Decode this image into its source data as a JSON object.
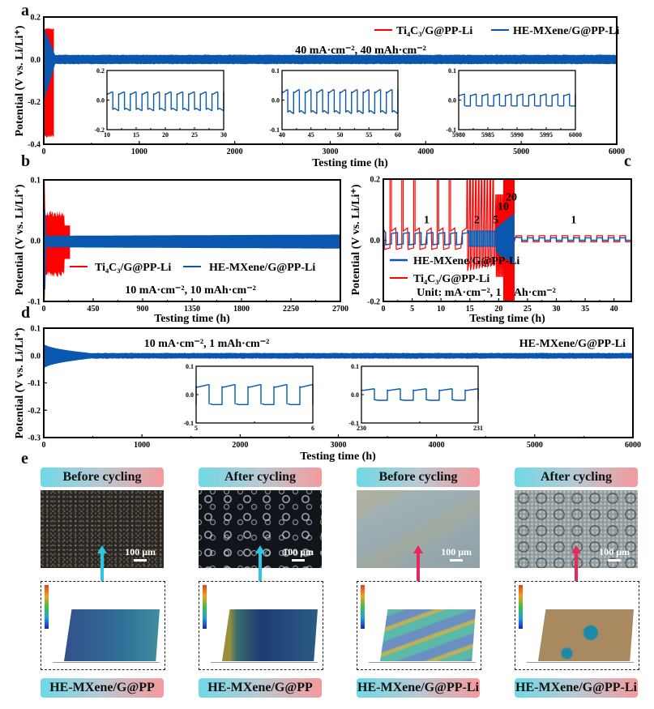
{
  "figure": {
    "panel_letters": [
      "a",
      "b",
      "c",
      "d",
      "e"
    ]
  },
  "chart_data": [
    {
      "id": "a",
      "type": "line",
      "xlabel": "Testing time (h)",
      "ylabel": "Potential (V vs. Li/Li⁺)",
      "xlim": [
        0,
        6000
      ],
      "ylim": [
        -0.4,
        0.2
      ],
      "xticks": [
        "0",
        "1000",
        "2000",
        "3000",
        "4000",
        "5000",
        "6000"
      ],
      "yticks": [
        "-0.4",
        "-0.2",
        "0.0",
        "0.2"
      ],
      "annotation": "40 mA·cm⁻², 40 mAh·cm⁻²",
      "legend": [
        "Ti₄C₃/G@PP-Li",
        "HE-MXene/G@PP-Li"
      ],
      "legend_position": "top-right",
      "series": [
        {
          "name": "Ti₄C₃/G@PP-Li",
          "color": "#ff0000",
          "x_end": 110,
          "upper": 0.17,
          "lower": -0.37
        },
        {
          "name": "HE-MXene/G@PP-Li",
          "color": "#0a57b0",
          "x_end": 6000,
          "upper_start": 0.15,
          "lower_start": -0.2,
          "upper": 0.02,
          "lower": -0.02
        }
      ],
      "insets": [
        {
          "xlim": [
            10,
            30
          ],
          "ylim": [
            -0.2,
            0.2
          ],
          "xticks": [
            "10",
            "15",
            "20",
            "25",
            "30"
          ],
          "yticks": [
            "-0.2",
            "0.0",
            "0.2"
          ],
          "amplitude": 0.07,
          "cycles": 10
        },
        {
          "xlim": [
            40,
            60
          ],
          "ylim": [
            -0.1,
            0.1
          ],
          "xticks": [
            "40",
            "45",
            "50",
            "55",
            "60"
          ],
          "yticks": [
            "-0.1",
            "0.0",
            "0.1"
          ],
          "amplitude": 0.045,
          "cycles": 10
        },
        {
          "xlim": [
            5980,
            6000
          ],
          "ylim": [
            -0.1,
            0.1
          ],
          "xticks": [
            "5980",
            "5985",
            "5990",
            "5995",
            "6000"
          ],
          "yticks": [
            "-0.1",
            "0.0",
            "0.1"
          ],
          "amplitude": 0.02,
          "cycles": 10
        }
      ]
    },
    {
      "id": "b",
      "type": "line",
      "xlabel": "Testing time (h)",
      "ylabel": "Potential (V vs. Li/Li⁺)",
      "xlim": [
        0,
        2700
      ],
      "ylim": [
        -0.1,
        0.1
      ],
      "xticks": [
        "0",
        "450",
        "900",
        "1350",
        "1800",
        "2250",
        "2700"
      ],
      "yticks": [
        "-0.1",
        "0.0",
        "0.1"
      ],
      "annotation": "10 mA·cm⁻², 10 mAh·cm⁻²",
      "legend": [
        "Ti₄C₃/G@PP-Li",
        "HE-MXene/G@PP-Li"
      ],
      "legend_position": "lower-center",
      "series": [
        {
          "name": "Ti₄C₃/G@PP-Li",
          "color": "#ff0000",
          "x_end": 240,
          "upper": 0.05,
          "lower": -0.06
        },
        {
          "name": "HE-MXene/G@PP-Li",
          "color": "#0a57b0",
          "x_end": 2700,
          "upper": 0.01,
          "lower": -0.012
        }
      ]
    },
    {
      "id": "c",
      "type": "line",
      "xlabel": "Testing time (h)",
      "ylabel": "Potential (V vs. Li/Li⁺)",
      "xlim": [
        0,
        43
      ],
      "ylim": [
        -0.2,
        0.2
      ],
      "xticks": [
        "0",
        "5",
        "10",
        "15",
        "20",
        "25",
        "30",
        "35",
        "40"
      ],
      "yticks": [
        "-0.2",
        "0.0",
        "0.2"
      ],
      "annotation": "Unit: mA·cm⁻², 1 mAh·cm⁻²",
      "rate_labels": [
        {
          "text": "1",
          "x": 7.5,
          "y": 0.055
        },
        {
          "text": "2",
          "x": 16.2,
          "y": 0.055
        },
        {
          "text": "5",
          "x": 19.5,
          "y": 0.055
        },
        {
          "text": "10",
          "x": 20.8,
          "y": 0.1
        },
        {
          "text": "20",
          "x": 22.2,
          "y": 0.13
        },
        {
          "text": "1",
          "x": 33,
          "y": 0.055
        }
      ],
      "legend": [
        "HE-MXene/G@PP-Li",
        "Ti₄C₃/G@PP-Li"
      ],
      "legend_position": "lower-left",
      "series": [
        {
          "name": "HE-MXene/G@PP-Li",
          "color": "#0a57b0"
        },
        {
          "name": "Ti₄C₃/G@PP-Li",
          "color": "#ff0000"
        }
      ]
    },
    {
      "id": "d",
      "type": "line",
      "xlabel": "Testing time (h)",
      "ylabel": "Potential (V vs. Li/Li⁺)",
      "xlim": [
        0,
        6000
      ],
      "ylim": [
        -0.3,
        0.1
      ],
      "xticks": [
        "0",
        "1000",
        "2000",
        "3000",
        "4000",
        "5000",
        "6000"
      ],
      "yticks": [
        "-0.3",
        "-0.2",
        "-0.1",
        "0.0",
        "0.1"
      ],
      "annotation": "10 mA·cm⁻², 1 mAh·cm⁻²",
      "legend": [
        "HE-MXene/G@PP-Li"
      ],
      "legend_position": "top-right",
      "series": [
        {
          "name": "HE-MXene/G@PP-Li",
          "color": "#0a57b0",
          "upper_start": 0.045,
          "lower_start": -0.05,
          "upper": 0.008,
          "lower": -0.01
        }
      ],
      "insets": [
        {
          "xlim": [
            5,
            6
          ],
          "ylim": [
            -0.1,
            0.1
          ],
          "xticks": [
            "5",
            "6"
          ],
          "yticks": [
            "-0.1",
            "0.0",
            "0.1"
          ],
          "amplitude": 0.035,
          "cycles": 4.5
        },
        {
          "xlim": [
            230,
            231
          ],
          "ylim": [
            -0.1,
            0.1
          ],
          "xticks": [
            "230",
            "231"
          ],
          "yticks": [
            "-0.1",
            "0.0",
            "0.1"
          ],
          "amplitude": 0.02,
          "cycles": 4.5
        }
      ]
    }
  ],
  "panel_e": {
    "columns": [
      {
        "header": "Before cycling",
        "scale": "100 μm",
        "footer": "HE-MXene/G@PP",
        "arrow_color": "#2ec5e6",
        "image": "dark-fine-speckle",
        "topo": "blue-green-flat"
      },
      {
        "header": "After cycling",
        "scale": "100 μm",
        "footer": "HE-MXene/G@PP",
        "arrow_color": "#2ec5e6",
        "image": "dark-bright-rings",
        "topo": "blue-with-orange-edge"
      },
      {
        "header": "Before cycling",
        "scale": "100 μm",
        "footer": "HE-MXene/G@PP-Li",
        "arrow_color": "#e8285a",
        "image": "grey-blue-smooth",
        "topo": "cyan-green-stripes"
      },
      {
        "header": "After cycling",
        "scale": "100 μm",
        "footer": "HE-MXene/G@PP-Li",
        "arrow_color": "#e8285a",
        "image": "grey-cracked",
        "topo": "brown-with-blue-pits"
      }
    ]
  },
  "colors": {
    "red": "#ff0000",
    "blue": "#0a57b0",
    "cyan_arrow": "#2ec5e6",
    "pink_arrow": "#e8285a"
  }
}
